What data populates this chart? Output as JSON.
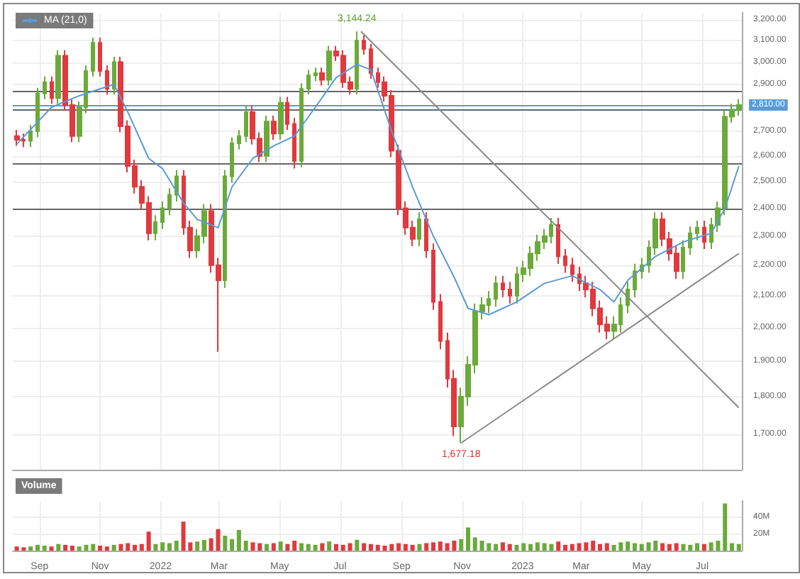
{
  "chart_data": [
    {
      "type": "candlestick",
      "log": "y",
      "grid": true,
      "legend": "top left",
      "marker": "none",
      "line_style": "solid",
      "tick_labels": "y",
      "colors": [
        "#e0393e",
        "#e0393e",
        "#6aaa3a",
        "#6aaa3a",
        "#6aaa3a",
        "#e0393e",
        "#6aaa3a",
        "#e0393e",
        "#e0393e",
        "#6aaa3a",
        "#6aaa3a",
        "#6aaa3a",
        "#e0393e",
        "#e0393e",
        "#6aaa3a",
        "#e0393e",
        "#e0393e",
        "#e0393e",
        "#e0393e",
        "#e0393e",
        "#6aaa3a",
        "#6aaa3a",
        "#6aaa3a",
        "#6aaa3a",
        "#e0393e",
        "#e0393e",
        "#6aaa3a",
        "#6aaa3a",
        "#e0393e",
        "#e0393e",
        "#6aaa3a",
        "#6aaa3a",
        "#6aaa3a",
        "#6aaa3a",
        "#e0393e",
        "#e0393e",
        "#6aaa3a",
        "#e0393e",
        "#6aaa3a",
        "#e0393e",
        "#e0393e",
        "#6aaa3a",
        "#6aaa3a",
        "#6aaa3a",
        "#e0393e",
        "#6aaa3a",
        "#e0393e",
        "#e0393e",
        "#e0393e",
        "#6aaa3a",
        "#e0393e",
        "#e0393e",
        "#e0393e",
        "#e0393e",
        "#e0393e",
        "#e0393e",
        "#e0393e",
        "#e0393e",
        "#6aaa3a",
        "#e0393e",
        "#e0393e",
        "#e0393e",
        "#e0393e",
        "#e0393e",
        "#6aaa3a",
        "#6aaa3a",
        "#6aaa3a",
        "#6aaa3a",
        "#6aaa3a",
        "#6aaa3a",
        "#e0393e",
        "#e0393e",
        "#6aaa3a",
        "#6aaa3a",
        "#6aaa3a",
        "#6aaa3a",
        "#6aaa3a",
        "#6aaa3a",
        "#e0393e",
        "#e0393e",
        "#e0393e",
        "#e0393e",
        "#e0393e",
        "#e0393e",
        "#e0393e",
        "#e0393e",
        "#6aaa3a",
        "#6aaa3a",
        "#6aaa3a",
        "#6aaa3a",
        "#6aaa3a",
        "#6aaa3a",
        "#6aaa3a",
        "#e0393e",
        "#e0393e",
        "#e0393e",
        "#6aaa3a",
        "#6aaa3a",
        "#6aaa3a",
        "#e0393e",
        "#6aaa3a",
        "#6aaa3a",
        "#6aaa3a",
        "#6aaa3a",
        "#6aaa3a"
      ],
      "xlim": [
        "2021-08-05",
        "2023-08-10"
      ],
      "xticks": [
        {
          "value": "2021-09-01",
          "label": null
        },
        {
          "value": "2021-11-01",
          "label": null
        },
        {
          "value": "2022-01-01",
          "label": null
        },
        {
          "value": "2022-03-01",
          "label": null
        },
        {
          "value": "2022-05-01",
          "label": null
        },
        {
          "value": "2022-07-01",
          "label": null
        },
        {
          "value": "2022-09-01",
          "label": null
        },
        {
          "value": "2022-11-01",
          "label": null
        },
        {
          "value": "2023-01-01",
          "label": null
        },
        {
          "value": "2023-03-01",
          "label": null
        },
        {
          "value": "2023-05-01",
          "label": null
        },
        {
          "value": "2023-07-01",
          "label": null
        }
      ],
      "ylim": [
        1610,
        3235
      ],
      "yticks": [
        {
          "value": 1700,
          "label": "1,700.00"
        },
        {
          "value": 1800,
          "label": "1,800.00"
        },
        {
          "value": 1900,
          "label": "1,900.00"
        },
        {
          "value": 2000,
          "label": "2,000.00"
        },
        {
          "value": 2100,
          "label": "2,100.00"
        },
        {
          "value": 2200,
          "label": "2,200.00"
        },
        {
          "value": 2300,
          "label": "2,300.00"
        },
        {
          "value": 2400,
          "label": "2,400.00"
        },
        {
          "value": 2500,
          "label": "2,500.00"
        },
        {
          "value": 2600,
          "label": "2,600.00"
        },
        {
          "value": 2700,
          "label": "2,700.00"
        },
        {
          "value": 2900,
          "label": "2,900.00"
        },
        {
          "value": 3000,
          "label": "3,000.00"
        },
        {
          "value": 3100,
          "label": "3,100.00"
        },
        {
          "value": 3200,
          "label": "3,200.00"
        }
      ],
      "x": [
        "2021-08-09",
        "2021-08-16",
        "2021-08-23",
        "2021-08-30",
        "2021-09-06",
        "2021-09-13",
        "2021-09-20",
        "2021-09-27",
        "2021-10-04",
        "2021-10-11",
        "2021-10-18",
        "2021-10-25",
        "2021-11-01",
        "2021-11-08",
        "2021-11-15",
        "2021-11-22",
        "2021-11-29",
        "2021-12-06",
        "2021-12-13",
        "2021-12-20",
        "2021-12-27",
        "2022-01-03",
        "2022-01-10",
        "2022-01-17",
        "2022-01-24",
        "2022-01-31",
        "2022-02-07",
        "2022-02-14",
        "2022-02-21",
        "2022-02-28",
        "2022-03-07",
        "2022-03-14",
        "2022-03-21",
        "2022-03-28",
        "2022-04-04",
        "2022-04-11",
        "2022-04-18",
        "2022-04-25",
        "2022-05-02",
        "2022-05-09",
        "2022-05-16",
        "2022-05-23",
        "2022-05-30",
        "2022-06-06",
        "2022-06-13",
        "2022-06-20",
        "2022-06-27",
        "2022-07-04",
        "2022-07-11",
        "2022-07-18",
        "2022-07-25",
        "2022-08-01",
        "2022-08-08",
        "2022-08-15",
        "2022-08-22",
        "2022-08-29",
        "2022-09-05",
        "2022-09-12",
        "2022-09-19",
        "2022-09-26",
        "2022-10-03",
        "2022-10-10",
        "2022-10-17",
        "2022-10-24",
        "2022-10-31",
        "2022-11-07",
        "2022-11-14",
        "2022-11-21",
        "2022-11-28",
        "2022-12-05",
        "2022-12-12",
        "2022-12-19",
        "2022-12-26",
        "2023-01-02",
        "2023-01-09",
        "2023-01-16",
        "2023-01-23",
        "2023-01-30",
        "2023-02-06",
        "2023-02-13",
        "2023-02-20",
        "2023-02-27",
        "2023-03-06",
        "2023-03-13",
        "2023-03-20",
        "2023-03-27",
        "2023-04-03",
        "2023-04-10",
        "2023-04-17",
        "2023-04-24",
        "2023-05-01",
        "2023-05-08",
        "2023-05-15",
        "2023-05-22",
        "2023-05-29",
        "2023-06-05",
        "2023-06-12",
        "2023-06-19",
        "2023-06-26",
        "2023-07-03",
        "2023-07-10",
        "2023-07-17",
        "2023-07-24",
        "2023-07-31",
        "2023-08-07"
      ],
      "ohlc": [
        [
          2680,
          2705,
          2640,
          2665
        ],
        [
          2665,
          2690,
          2635,
          2660
        ],
        [
          2660,
          2725,
          2635,
          2700
        ],
        [
          2700,
          2885,
          2675,
          2860
        ],
        [
          2860,
          2935,
          2835,
          2910
        ],
        [
          2910,
          2935,
          2815,
          2840
        ],
        [
          2840,
          3055,
          2815,
          3030
        ],
        [
          3030,
          3055,
          2785,
          2810
        ],
        [
          2810,
          2835,
          2655,
          2680
        ],
        [
          2680,
          2825,
          2655,
          2800
        ],
        [
          2800,
          2985,
          2775,
          2960
        ],
        [
          2960,
          3115,
          2935,
          3090
        ],
        [
          3090,
          3115,
          2935,
          2960
        ],
        [
          2960,
          2985,
          2855,
          2880
        ],
        [
          2880,
          3025,
          2855,
          3000
        ],
        [
          3000,
          3025,
          2695,
          2720
        ],
        [
          2720,
          2745,
          2535,
          2560
        ],
        [
          2560,
          2585,
          2455,
          2480
        ],
        [
          2480,
          2505,
          2395,
          2420
        ],
        [
          2420,
          2445,
          2285,
          2310
        ],
        [
          2310,
          2375,
          2285,
          2350
        ],
        [
          2350,
          2425,
          2325,
          2400
        ],
        [
          2400,
          2475,
          2375,
          2450
        ],
        [
          2450,
          2545,
          2425,
          2520
        ],
        [
          2520,
          2545,
          2305,
          2330
        ],
        [
          2330,
          2355,
          2225,
          2250
        ],
        [
          2250,
          2325,
          2225,
          2300
        ],
        [
          2300,
          2415,
          2275,
          2390
        ],
        [
          2390,
          2415,
          2175,
          2200
        ],
        [
          2200,
          2225,
          1928,
          2150
        ],
        [
          2150,
          2545,
          2125,
          2520
        ],
        [
          2520,
          2675,
          2495,
          2650
        ],
        [
          2650,
          2705,
          2625,
          2680
        ],
        [
          2680,
          2805,
          2655,
          2780
        ],
        [
          2780,
          2805,
          2645,
          2670
        ],
        [
          2670,
          2695,
          2575,
          2600
        ],
        [
          2600,
          2765,
          2575,
          2740
        ],
        [
          2740,
          2765,
          2665,
          2690
        ],
        [
          2690,
          2845,
          2665,
          2820
        ],
        [
          2820,
          2845,
          2705,
          2730
        ],
        [
          2730,
          2755,
          2550,
          2580
        ],
        [
          2580,
          2905,
          2555,
          2880
        ],
        [
          2880,
          2965,
          2855,
          2940
        ],
        [
          2940,
          2975,
          2915,
          2950
        ],
        [
          2950,
          2975,
          2895,
          2920
        ],
        [
          2920,
          3075,
          2895,
          3050
        ],
        [
          3050,
          3075,
          3005,
          3030
        ],
        [
          3030,
          3055,
          2885,
          2910
        ],
        [
          2910,
          2935,
          2855,
          2880
        ],
        [
          2880,
          3144.24,
          2855,
          3100
        ],
        [
          3100,
          3125,
          3035,
          3060
        ],
        [
          3060,
          3085,
          2925,
          2950
        ],
        [
          2950,
          2975,
          2885,
          2910
        ],
        [
          2910,
          2935,
          2825,
          2850
        ],
        [
          2850,
          2875,
          2595,
          2620
        ],
        [
          2620,
          2645,
          2375,
          2400
        ],
        [
          2400,
          2425,
          2305,
          2330
        ],
        [
          2330,
          2355,
          2265,
          2290
        ],
        [
          2290,
          2385,
          2265,
          2360
        ],
        [
          2360,
          2385,
          2225,
          2250
        ],
        [
          2250,
          2275,
          2055,
          2080
        ],
        [
          2080,
          2105,
          1935,
          1960
        ],
        [
          1960,
          1985,
          1825,
          1850
        ],
        [
          1850,
          1875,
          1695,
          1720
        ],
        [
          1720,
          1825,
          1677.18,
          1800
        ],
        [
          1800,
          1915,
          1775,
          1890
        ],
        [
          1890,
          2075,
          1865,
          2050
        ],
        [
          2050,
          2095,
          2025,
          2070
        ],
        [
          2070,
          2115,
          2045,
          2090
        ],
        [
          2090,
          2165,
          2065,
          2140
        ],
        [
          2140,
          2165,
          2095,
          2120
        ],
        [
          2120,
          2145,
          2075,
          2100
        ],
        [
          2100,
          2195,
          2075,
          2170
        ],
        [
          2170,
          2215,
          2145,
          2190
        ],
        [
          2190,
          2265,
          2165,
          2240
        ],
        [
          2240,
          2305,
          2215,
          2280
        ],
        [
          2280,
          2325,
          2255,
          2300
        ],
        [
          2300,
          2365,
          2275,
          2340
        ],
        [
          2340,
          2365,
          2205,
          2230
        ],
        [
          2230,
          2255,
          2175,
          2200
        ],
        [
          2200,
          2225,
          2145,
          2170
        ],
        [
          2170,
          2195,
          2115,
          2140
        ],
        [
          2140,
          2165,
          2095,
          2120
        ],
        [
          2120,
          2145,
          2035,
          2060
        ],
        [
          2060,
          2085,
          1985,
          2010
        ],
        [
          2010,
          2035,
          1965,
          1990
        ],
        [
          1990,
          2035,
          1965,
          2010
        ],
        [
          2010,
          2095,
          1985,
          2070
        ],
        [
          2070,
          2145,
          2045,
          2120
        ],
        [
          2120,
          2205,
          2095,
          2180
        ],
        [
          2180,
          2225,
          2155,
          2200
        ],
        [
          2200,
          2285,
          2175,
          2260
        ],
        [
          2260,
          2385,
          2235,
          2360
        ],
        [
          2360,
          2385,
          2265,
          2290
        ],
        [
          2290,
          2315,
          2215,
          2240
        ],
        [
          2240,
          2265,
          2155,
          2180
        ],
        [
          2180,
          2285,
          2155,
          2260
        ],
        [
          2260,
          2335,
          2235,
          2310
        ],
        [
          2310,
          2355,
          2285,
          2330
        ],
        [
          2330,
          2355,
          2255,
          2280
        ],
        [
          2280,
          2365,
          2255,
          2340
        ],
        [
          2340,
          2425,
          2315,
          2400
        ],
        [
          2400,
          2785,
          2375,
          2760
        ],
        [
          2760,
          2815,
          2735,
          2790
        ],
        [
          2790,
          2835,
          2765,
          2810
        ]
      ],
      "series": [
        {
          "type": "line",
          "name": "MA (21,0)",
          "color": "#5b9bd5",
          "x": [
            "2021-08-09",
            "2021-09-13",
            "2021-10-11",
            "2021-11-01",
            "2021-11-15",
            "2021-11-29",
            "2021-12-20",
            "2022-01-03",
            "2022-01-24",
            "2022-02-07",
            "2022-02-28",
            "2022-03-14",
            "2022-04-04",
            "2022-04-25",
            "2022-05-16",
            "2022-06-06",
            "2022-06-27",
            "2022-07-18",
            "2022-08-01",
            "2022-08-22",
            "2022-09-12",
            "2022-10-03",
            "2022-10-24",
            "2022-11-07",
            "2022-11-28",
            "2022-12-26",
            "2023-01-23",
            "2023-02-20",
            "2023-03-20",
            "2023-04-03",
            "2023-04-17",
            "2023-05-15",
            "2023-06-12",
            "2023-07-10",
            "2023-07-24",
            "2023-08-07"
          ],
          "values": [
            2647,
            2800,
            2850,
            2880,
            2900,
            2780,
            2590,
            2550,
            2420,
            2360,
            2330,
            2480,
            2590,
            2640,
            2680,
            2800,
            2930,
            2990,
            2965,
            2700,
            2480,
            2300,
            2160,
            2060,
            2040,
            2080,
            2140,
            2165,
            2120,
            2080,
            2150,
            2230,
            2280,
            2310,
            2400,
            2560
          ]
        },
        {
          "type": "line",
          "color": "#8a8a8a",
          "x": [
            "2022-07-22",
            "2023-08-07"
          ],
          "values": [
            3144.24,
            1770
          ]
        },
        {
          "type": "line",
          "color": "#8a8a8a",
          "x": [
            "2022-10-31",
            "2023-08-07"
          ],
          "values": [
            1677.18,
            2240
          ]
        }
      ],
      "ref_lines": [
        {
          "axis": "y",
          "value": 2870,
          "color": "#666666"
        },
        {
          "axis": "y",
          "value": 2790,
          "color": "#666666"
        },
        {
          "axis": "y",
          "value": 2570,
          "color": "#666666"
        },
        {
          "axis": "y",
          "value": 2395,
          "color": "#666666"
        },
        {
          "axis": "y",
          "value": 2810,
          "color": "#5b9bd5",
          "label": "2,810.00"
        }
      ],
      "annotations": [
        {
          "text": "3,144.24",
          "x": "2022-07-18",
          "y": 3144.24
        },
        {
          "text": "1,677.18",
          "x": "2022-10-31",
          "y": 1677.18
        }
      ]
    },
    {
      "type": "bar",
      "title": "Volume",
      "grid": true,
      "xlim": [
        "2021-08-05",
        "2023-08-10"
      ],
      "xticks": [
        {
          "value": "2021-09-01",
          "label": "Sep"
        },
        {
          "value": "2021-11-01",
          "label": "Nov"
        },
        {
          "value": "2022-01-01",
          "label": "2022"
        },
        {
          "value": "2022-03-01",
          "label": "Mar"
        },
        {
          "value": "2022-05-01",
          "label": "May"
        },
        {
          "value": "2022-07-01",
          "label": "Jul"
        },
        {
          "value": "2022-09-01",
          "label": "Sep"
        },
        {
          "value": "2022-11-01",
          "label": "Nov"
        },
        {
          "value": "2023-01-01",
          "label": "2023"
        },
        {
          "value": "2023-03-01",
          "label": "Mar"
        },
        {
          "value": "2023-05-01",
          "label": "May"
        },
        {
          "value": "2023-07-01",
          "label": "Jul"
        }
      ],
      "ylim": [
        0,
        60
      ],
      "yticks": [
        {
          "value": 20,
          "label": "20M"
        },
        {
          "value": 40,
          "label": "40M"
        }
      ],
      "x": [
        "2021-08-09",
        "2021-08-16",
        "2021-08-23",
        "2021-08-30",
        "2021-09-06",
        "2021-09-13",
        "2021-09-20",
        "2021-09-27",
        "2021-10-04",
        "2021-10-11",
        "2021-10-18",
        "2021-10-25",
        "2021-11-01",
        "2021-11-08",
        "2021-11-15",
        "2021-11-22",
        "2021-11-29",
        "2021-12-06",
        "2021-12-13",
        "2021-12-20",
        "2021-12-27",
        "2022-01-03",
        "2022-01-10",
        "2022-01-17",
        "2022-01-24",
        "2022-01-31",
        "2022-02-07",
        "2022-02-14",
        "2022-02-21",
        "2022-02-28",
        "2022-03-07",
        "2022-03-14",
        "2022-03-21",
        "2022-03-28",
        "2022-04-04",
        "2022-04-11",
        "2022-04-18",
        "2022-04-25",
        "2022-05-02",
        "2022-05-09",
        "2022-05-16",
        "2022-05-23",
        "2022-05-30",
        "2022-06-06",
        "2022-06-13",
        "2022-06-20",
        "2022-06-27",
        "2022-07-04",
        "2022-07-11",
        "2022-07-18",
        "2022-07-25",
        "2022-08-01",
        "2022-08-08",
        "2022-08-15",
        "2022-08-22",
        "2022-08-29",
        "2022-09-05",
        "2022-09-12",
        "2022-09-19",
        "2022-09-26",
        "2022-10-03",
        "2022-10-10",
        "2022-10-17",
        "2022-10-24",
        "2022-10-31",
        "2022-11-07",
        "2022-11-14",
        "2022-11-21",
        "2022-11-28",
        "2022-12-05",
        "2022-12-12",
        "2022-12-19",
        "2022-12-26",
        "2023-01-02",
        "2023-01-09",
        "2023-01-16",
        "2023-01-23",
        "2023-01-30",
        "2023-02-06",
        "2023-02-13",
        "2023-02-20",
        "2023-02-27",
        "2023-03-06",
        "2023-03-13",
        "2023-03-20",
        "2023-03-27",
        "2023-04-03",
        "2023-04-10",
        "2023-04-17",
        "2023-04-24",
        "2023-05-01",
        "2023-05-08",
        "2023-05-15",
        "2023-05-22",
        "2023-05-29",
        "2023-06-05",
        "2023-06-12",
        "2023-06-19",
        "2023-06-26",
        "2023-07-03",
        "2023-07-10",
        "2023-07-17",
        "2023-07-24",
        "2023-07-31",
        "2023-08-07"
      ],
      "values": [
        5,
        4,
        5,
        7,
        6,
        5,
        8,
        7,
        6,
        5,
        7,
        8,
        6,
        5,
        7,
        8,
        9,
        7,
        8,
        23,
        8,
        10,
        9,
        12,
        35,
        10,
        11,
        13,
        15,
        26,
        18,
        14,
        25,
        12,
        10,
        9,
        8,
        9,
        11,
        8,
        12,
        9,
        8,
        7,
        9,
        11,
        8,
        7,
        9,
        13,
        9,
        8,
        7,
        6,
        8,
        9,
        8,
        7,
        8,
        9,
        10,
        11,
        9,
        12,
        14,
        28,
        16,
        12,
        9,
        8,
        10,
        8,
        7,
        9,
        8,
        10,
        9,
        8,
        11,
        7,
        8,
        9,
        10,
        12,
        8,
        9,
        7,
        10,
        11,
        9,
        8,
        10,
        12,
        9,
        8,
        9,
        8,
        7,
        9,
        8,
        10,
        12,
        57,
        9,
        8
      ],
      "colors": [
        "#e0393e",
        "#e0393e",
        "#6aaa3a",
        "#6aaa3a",
        "#6aaa3a",
        "#e0393e",
        "#6aaa3a",
        "#e0393e",
        "#e0393e",
        "#6aaa3a",
        "#6aaa3a",
        "#6aaa3a",
        "#e0393e",
        "#e0393e",
        "#6aaa3a",
        "#e0393e",
        "#e0393e",
        "#e0393e",
        "#e0393e",
        "#e0393e",
        "#6aaa3a",
        "#6aaa3a",
        "#6aaa3a",
        "#6aaa3a",
        "#e0393e",
        "#e0393e",
        "#6aaa3a",
        "#6aaa3a",
        "#e0393e",
        "#e0393e",
        "#6aaa3a",
        "#6aaa3a",
        "#6aaa3a",
        "#6aaa3a",
        "#e0393e",
        "#e0393e",
        "#6aaa3a",
        "#e0393e",
        "#6aaa3a",
        "#e0393e",
        "#e0393e",
        "#6aaa3a",
        "#6aaa3a",
        "#6aaa3a",
        "#e0393e",
        "#6aaa3a",
        "#e0393e",
        "#e0393e",
        "#e0393e",
        "#6aaa3a",
        "#e0393e",
        "#e0393e",
        "#e0393e",
        "#e0393e",
        "#e0393e",
        "#e0393e",
        "#e0393e",
        "#e0393e",
        "#6aaa3a",
        "#e0393e",
        "#e0393e",
        "#e0393e",
        "#e0393e",
        "#e0393e",
        "#6aaa3a",
        "#6aaa3a",
        "#6aaa3a",
        "#6aaa3a",
        "#6aaa3a",
        "#6aaa3a",
        "#e0393e",
        "#e0393e",
        "#6aaa3a",
        "#6aaa3a",
        "#6aaa3a",
        "#6aaa3a",
        "#6aaa3a",
        "#6aaa3a",
        "#e0393e",
        "#e0393e",
        "#e0393e",
        "#e0393e",
        "#e0393e",
        "#e0393e",
        "#e0393e",
        "#e0393e",
        "#6aaa3a",
        "#6aaa3a",
        "#6aaa3a",
        "#6aaa3a",
        "#6aaa3a",
        "#6aaa3a",
        "#6aaa3a",
        "#e0393e",
        "#e0393e",
        "#e0393e",
        "#6aaa3a",
        "#6aaa3a",
        "#6aaa3a",
        "#e0393e",
        "#6aaa3a",
        "#6aaa3a",
        "#6aaa3a",
        "#6aaa3a",
        "#6aaa3a"
      ]
    }
  ]
}
